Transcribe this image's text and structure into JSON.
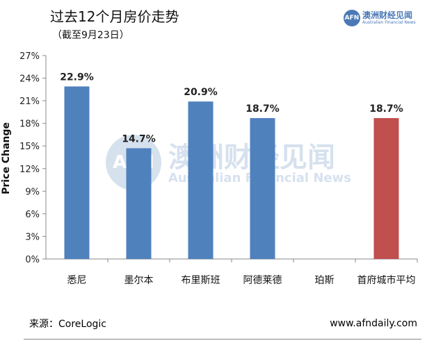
{
  "header": {
    "title": "过去12个月房价走势",
    "subtitle": "（截至9月23日）"
  },
  "logo": {
    "badge": "AFN",
    "name_cn": "澳洲财经见闻",
    "name_en": "Australian Financial News"
  },
  "watermark": {
    "badge": "AFN",
    "name_cn": "澳洲财经见闻",
    "name_en": "Australian Financial News"
  },
  "footer": {
    "source": "来源：CoreLogic",
    "website": "www.afndaily.com"
  },
  "colors": {
    "bar": "#4f81bd",
    "highlight": "#c0504d",
    "axis": "#888888",
    "brand": "#4a79b6"
  },
  "chart_data": {
    "type": "bar",
    "ylabel": "Price Change",
    "ylim": [
      0,
      27
    ],
    "yticks": [
      "0%",
      "3%",
      "6%",
      "9%",
      "12%",
      "15%",
      "18%",
      "21%",
      "24%",
      "27%"
    ],
    "grid": false,
    "categories": [
      "悉尼",
      "墨尔本",
      "布里斯班",
      "阿德莱德",
      "珀斯",
      "首府城市平均"
    ],
    "values": [
      22.9,
      14.7,
      20.9,
      18.7,
      null,
      18.7
    ],
    "data_labels": [
      "22.9%",
      "14.7%",
      "20.9%",
      "18.7%",
      "",
      "18.7%"
    ],
    "highlight_index": 5
  }
}
